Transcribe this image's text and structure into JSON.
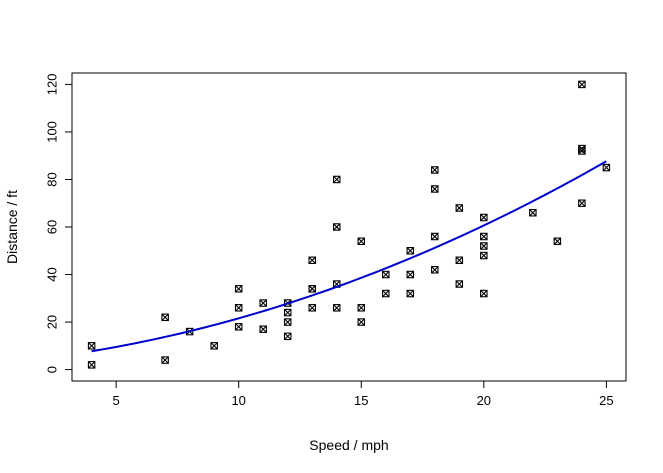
{
  "chart_data": {
    "type": "scatter",
    "title": "",
    "xlabel": "Speed / mph",
    "ylabel": "Distance / ft",
    "xlim": [
      3.2,
      25.8
    ],
    "ylim": [
      -4.8,
      124.8
    ],
    "xticks": [
      5,
      10,
      15,
      20,
      25
    ],
    "yticks": [
      0,
      20,
      40,
      60,
      80,
      100,
      120
    ],
    "grid": false,
    "legend": "none",
    "marker": "boxed-x",
    "points": [
      [
        4,
        2
      ],
      [
        4,
        10
      ],
      [
        7,
        4
      ],
      [
        7,
        22
      ],
      [
        8,
        16
      ],
      [
        9,
        10
      ],
      [
        10,
        18
      ],
      [
        10,
        26
      ],
      [
        10,
        34
      ],
      [
        11,
        17
      ],
      [
        11,
        28
      ],
      [
        12,
        14
      ],
      [
        12,
        20
      ],
      [
        12,
        24
      ],
      [
        12,
        28
      ],
      [
        13,
        26
      ],
      [
        13,
        34
      ],
      [
        13,
        34
      ],
      [
        13,
        46
      ],
      [
        14,
        26
      ],
      [
        14,
        36
      ],
      [
        14,
        60
      ],
      [
        14,
        80
      ],
      [
        15,
        20
      ],
      [
        15,
        26
      ],
      [
        15,
        54
      ],
      [
        16,
        32
      ],
      [
        16,
        40
      ],
      [
        17,
        32
      ],
      [
        17,
        40
      ],
      [
        17,
        50
      ],
      [
        18,
        42
      ],
      [
        18,
        56
      ],
      [
        18,
        76
      ],
      [
        18,
        84
      ],
      [
        19,
        36
      ],
      [
        19,
        46
      ],
      [
        19,
        68
      ],
      [
        20,
        32
      ],
      [
        20,
        48
      ],
      [
        20,
        52
      ],
      [
        20,
        56
      ],
      [
        20,
        64
      ],
      [
        22,
        66
      ],
      [
        23,
        54
      ],
      [
        24,
        70
      ],
      [
        24,
        92
      ],
      [
        24,
        93
      ],
      [
        24,
        120
      ],
      [
        25,
        85
      ]
    ],
    "fit": {
      "type": "quadratic",
      "color": "#0000cc",
      "coefficients": [
        2.47,
        0.913,
        0.0998
      ]
    }
  }
}
